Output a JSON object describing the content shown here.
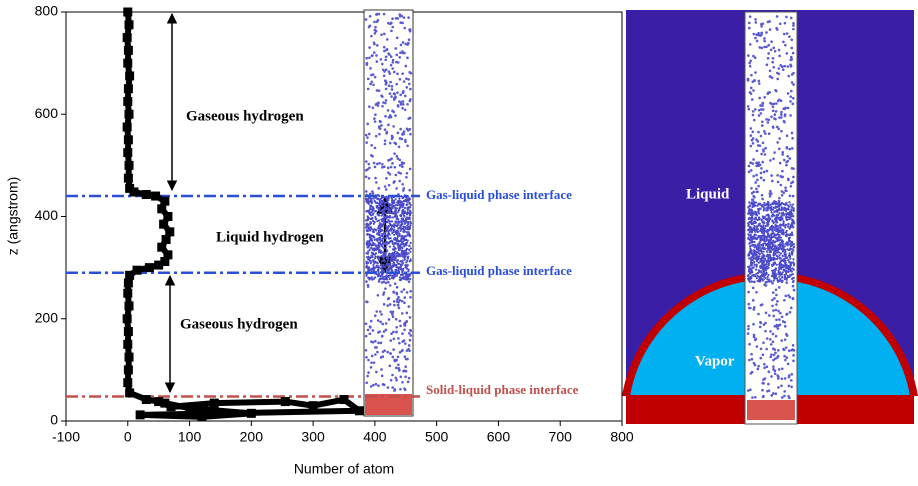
{
  "chart_data": {
    "type": "line",
    "markers": true,
    "x_label": "Number of atom",
    "y_label": "z (angstrom)",
    "xlim": [
      -100,
      800
    ],
    "xticks": [
      -100,
      0,
      100,
      200,
      300,
      400,
      500,
      600,
      700,
      800
    ],
    "ylim": [
      0,
      800
    ],
    "yticks": [
      0,
      200,
      400,
      600,
      800
    ],
    "series": [
      {
        "color": "#000000",
        "x": [
          0,
          2,
          -1,
          1,
          0,
          3,
          1,
          0,
          2,
          -1,
          1,
          0,
          2,
          1,
          3,
          10,
          30,
          45,
          60,
          55,
          65,
          58,
          68,
          62,
          55,
          65,
          60,
          50,
          35,
          15,
          3,
          1,
          0,
          2,
          -1,
          1,
          0,
          2,
          1,
          0,
          3,
          30,
          50,
          70,
          140,
          255,
          300,
          350,
          375,
          20,
          120,
          200,
          100,
          60
        ],
        "y": [
          800,
          775,
          750,
          725,
          700,
          675,
          650,
          625,
          600,
          575,
          550,
          525,
          500,
          475,
          455,
          448,
          443,
          440,
          430,
          415,
          400,
          385,
          370,
          355,
          340,
          325,
          312,
          305,
          300,
          295,
          285,
          270,
          250,
          225,
          200,
          175,
          150,
          125,
          100,
          75,
          55,
          42,
          38,
          28,
          35,
          38,
          30,
          42,
          20,
          12,
          8,
          15,
          25,
          35
        ]
      }
    ],
    "reference_lines": [
      {
        "value": 440,
        "label": "Gas-liquid phase interface",
        "color": "#2a4fd6"
      },
      {
        "value": 290,
        "label": "Gas-liquid phase interface",
        "color": "#2a4fd6"
      },
      {
        "value": 48,
        "label": "Solid-liquid phase interface",
        "color": "#c0504d"
      }
    ],
    "annotations": [
      "Gaseous hydrogen",
      "Liquid hydrogen",
      "Gaseous hydrogen"
    ],
    "illustration_labels": [
      "Liquid",
      "Vapor"
    ]
  }
}
